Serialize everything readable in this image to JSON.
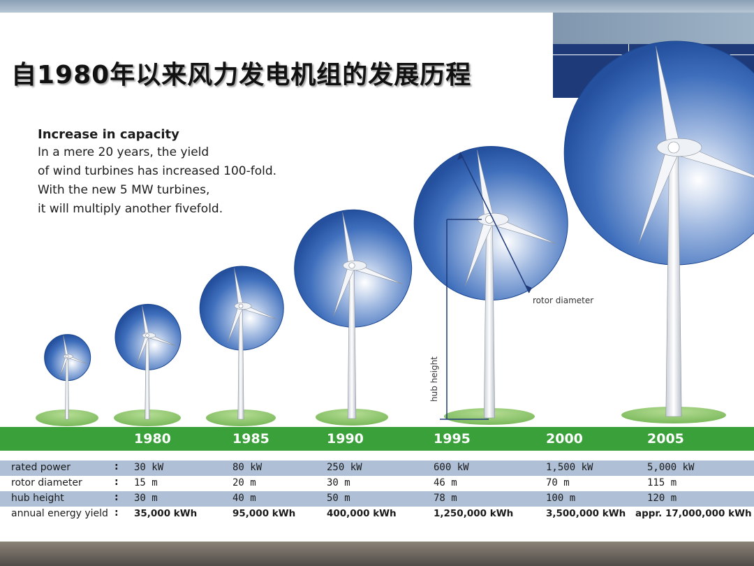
{
  "title": "自1980年以来风力发电机组的发展历程",
  "intro": {
    "heading": "Increase in capacity",
    "lines": [
      "In a mere 20 years, the yield",
      "of wind turbines has increased 100-fold.",
      "With the new 5 MW turbines,",
      "it will multiply another fivefold."
    ]
  },
  "annotations": {
    "rotor_diameter": "rotor diameter",
    "hub_height": "hub height"
  },
  "years": [
    "1980",
    "1985",
    "1990",
    "1995",
    "2000",
    "2005"
  ],
  "specs": [
    {
      "label": "rated power",
      "values": [
        "30 kW",
        "80 kW",
        "250 kW",
        "600 kW",
        "1,500 kW",
        "5,000 kW"
      ]
    },
    {
      "label": "rotor diameter",
      "values": [
        "15 m",
        "20 m",
        "30 m",
        "46 m",
        "70 m",
        "115 m"
      ]
    },
    {
      "label": "hub height",
      "values": [
        "30 m",
        "40 m",
        "50 m",
        "78 m",
        "100 m",
        "120 m"
      ]
    },
    {
      "label": "annual energy yield",
      "values": [
        "35,000 kWh",
        "95,000 kWh",
        "400,000 kWh",
        "1,250,000 kWh",
        "3,500,000 kWh",
        "appr. 17,000,000 kWh"
      ]
    }
  ],
  "spec_colon": ":",
  "colors": {
    "rotor_disc": "#2d5aa8",
    "year_band": "#3aa13a",
    "spec_row_shade": "#aebfd6",
    "ground": "#8cc66b",
    "navy_accent": "#1f3a78"
  },
  "icons": [
    "wind-turbine-icon",
    "rotor-disc-icon",
    "ground-mound-icon"
  ]
}
